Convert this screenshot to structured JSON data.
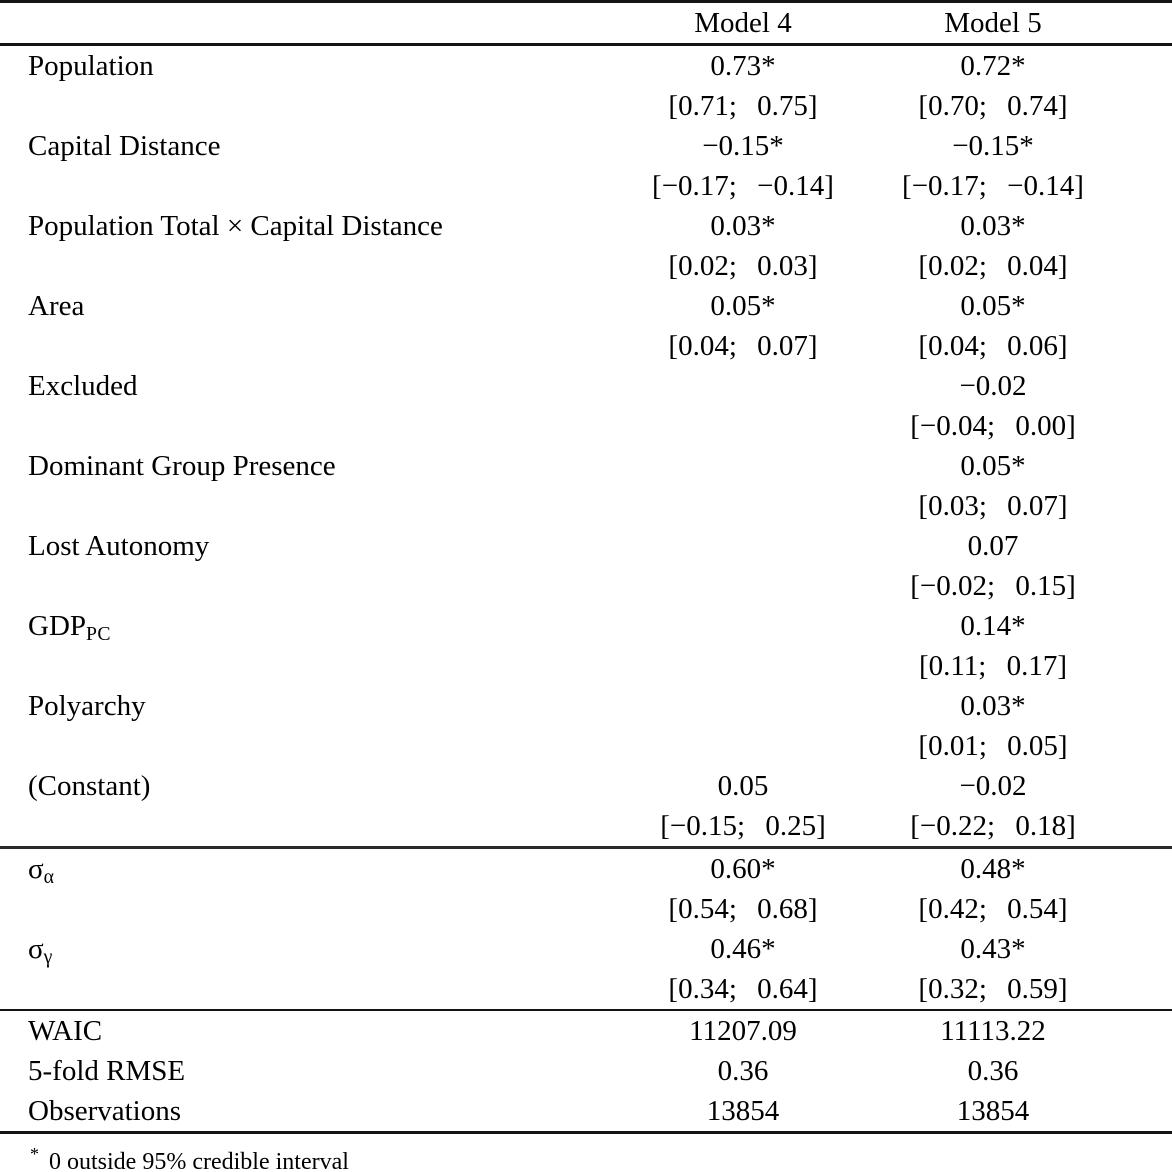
{
  "table": {
    "header": {
      "columns": [
        "Model 4",
        "Model 5"
      ]
    },
    "coefficients": [
      {
        "label": "Population",
        "m4_est": "0.73*",
        "m4_ci": "[0.71; 0.75]",
        "m5_est": "0.72*",
        "m5_ci": "[0.70; 0.74]"
      },
      {
        "label": "Capital Distance",
        "m4_est": "−0.15*",
        "m4_ci": "[−0.17; −0.14]",
        "m5_est": "−0.15*",
        "m5_ci": "[−0.17; −0.14]"
      },
      {
        "label": "Population Total × Capital Distance",
        "m4_est": "0.03*",
        "m4_ci": "[0.02; 0.03]",
        "m5_est": "0.03*",
        "m5_ci": "[0.02; 0.04]"
      },
      {
        "label": "Area",
        "m4_est": "0.05*",
        "m4_ci": "[0.04; 0.07]",
        "m5_est": "0.05*",
        "m5_ci": "[0.04; 0.06]"
      },
      {
        "label": "Excluded",
        "m4_est": "",
        "m4_ci": "",
        "m5_est": "−0.02",
        "m5_ci": "[−0.04; 0.00]"
      },
      {
        "label": "Dominant Group Presence",
        "m4_est": "",
        "m4_ci": "",
        "m5_est": "0.05*",
        "m5_ci": "[0.03; 0.07]"
      },
      {
        "label": "Lost Autonomy",
        "m4_est": "",
        "m4_ci": "",
        "m5_est": "0.07",
        "m5_ci": "[−0.02; 0.15]"
      },
      {
        "label": "GDP",
        "label_sub": "PC",
        "m4_est": "",
        "m4_ci": "",
        "m5_est": "0.14*",
        "m5_ci": "[0.11; 0.17]"
      },
      {
        "label": "Polyarchy",
        "m4_est": "",
        "m4_ci": "",
        "m5_est": "0.03*",
        "m5_ci": "[0.01; 0.05]"
      },
      {
        "label": "(Constant)",
        "m4_est": "0.05",
        "m4_ci": "[−0.15; 0.25]",
        "m5_est": "−0.02",
        "m5_ci": "[−0.22; 0.18]"
      }
    ],
    "variance_components": [
      {
        "label": "σ",
        "label_sub": "α",
        "m4_est": "0.60*",
        "m4_ci": "[0.54; 0.68]",
        "m5_est": "0.48*",
        "m5_ci": "[0.42; 0.54]"
      },
      {
        "label": "σ",
        "label_sub": "γ",
        "m4_est": "0.46*",
        "m4_ci": "[0.34; 0.64]",
        "m5_est": "0.43*",
        "m5_ci": "[0.32; 0.59]"
      }
    ],
    "fit_statistics": [
      {
        "label": "WAIC",
        "m4": "11207.09",
        "m5": "11113.22"
      },
      {
        "label": "5-fold RMSE",
        "m4": "0.36",
        "m5": "0.36"
      },
      {
        "label": "Observations",
        "m4": "13854",
        "m5": "13854"
      }
    ],
    "footnote": {
      "marker": "*",
      "text": "0 outside 95% credible interval"
    }
  }
}
